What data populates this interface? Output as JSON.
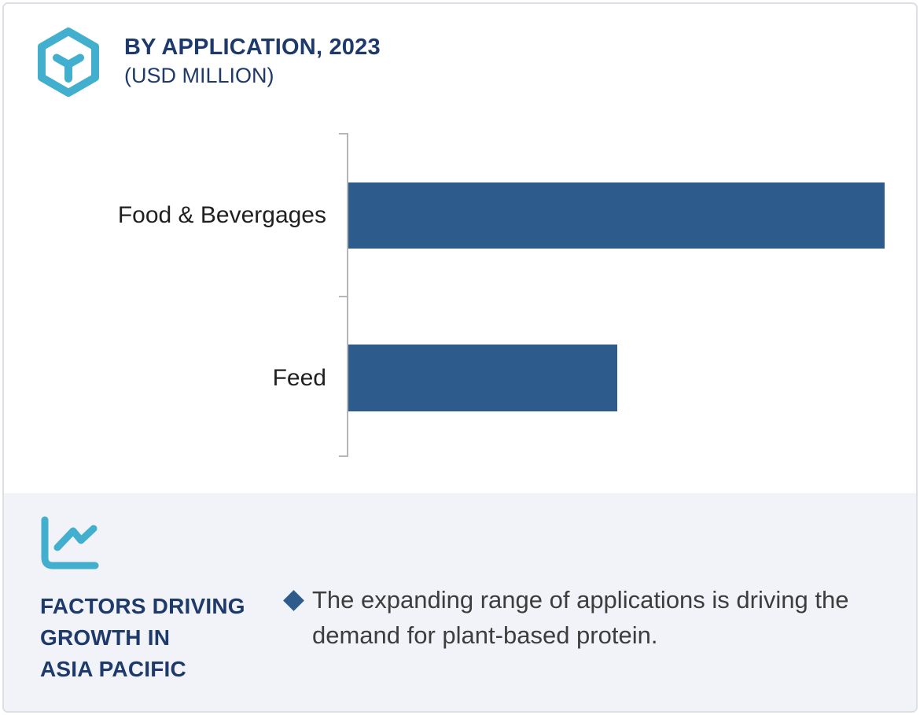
{
  "header": {
    "title": "BY APPLICATION, 2023",
    "subtitle": "(USD MILLION)",
    "icon": "hexagon-cube-icon"
  },
  "chart_data": {
    "type": "bar",
    "orientation": "horizontal",
    "title": "BY APPLICATION, 2023",
    "subtitle": "(USD MILLION)",
    "categories": [
      "Food & Bevergages",
      "Feed"
    ],
    "values_relative_pct": [
      100,
      50.1
    ],
    "value_labels_shown": false,
    "numeric_axis_shown": false,
    "legend": "none",
    "bar_color": "#2d5c8c",
    "axis_color": "#b3b6ba"
  },
  "factors_panel": {
    "icon": "line-chart-icon",
    "title_line1": "FACTORS DRIVING",
    "title_line2": "GROWTH IN",
    "title_line3": "ASIA PACIFIC",
    "bullet": {
      "marker": "diamond",
      "text": "The expanding range of applications is driving the demand for plant-based protein."
    }
  },
  "colors": {
    "navy": "#1d3a6b",
    "teal": "#41afcd",
    "bar_blue": "#2d5c8c",
    "panel_background": "#f1f3f8",
    "card_border": "#dcdfe6",
    "body_text": "#3d3d3d",
    "category_text": "#1f1f1f"
  }
}
